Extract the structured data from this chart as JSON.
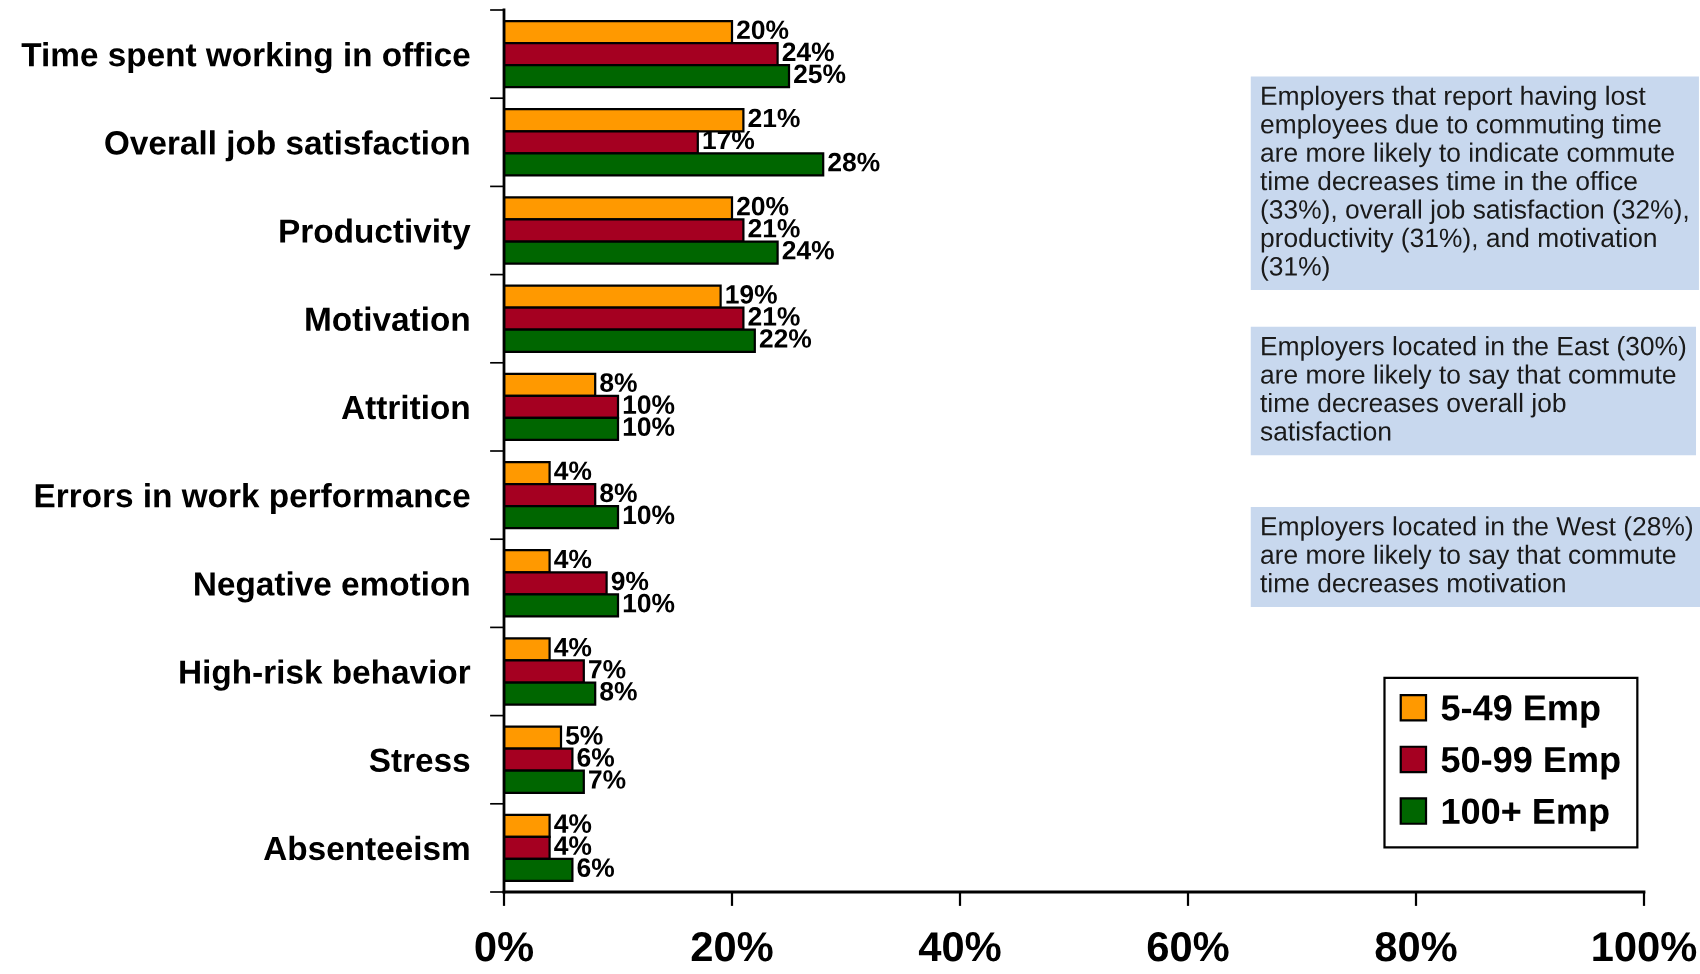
{
  "chart_data": {
    "type": "bar",
    "orientation": "horizontal",
    "categories": [
      "Time spent working in office",
      "Overall job satisfaction",
      "Productivity",
      "Motivation",
      "Attrition",
      "Errors in work performance",
      "Negative emotion",
      "High-risk behavior",
      "Stress",
      "Absenteeism"
    ],
    "series": [
      {
        "name": "5-49 Emp",
        "color": "#ff9900",
        "values": [
          20,
          21,
          20,
          19,
          8,
          4,
          4,
          4,
          5,
          4
        ],
        "value_labels": [
          "20%",
          "21%",
          "20%",
          "19%",
          "8%",
          "4%",
          "4%",
          "4%",
          "5%",
          "4%"
        ]
      },
      {
        "name": "50-99 Emp",
        "color": "#a50021",
        "values": [
          24,
          17,
          21,
          21,
          10,
          8,
          9,
          7,
          6,
          4
        ],
        "value_labels": [
          "24%",
          "17%",
          "21%",
          "21%",
          "10%",
          "8%",
          "9%",
          "7%",
          "6%",
          "4%"
        ]
      },
      {
        "name": "100+ Emp",
        "color": "#006600",
        "values": [
          25,
          28,
          24,
          22,
          10,
          10,
          10,
          8,
          7,
          6
        ],
        "value_labels": [
          "25%",
          "28%",
          "24%",
          "22%",
          "10%",
          "10%",
          "10%",
          "8%",
          "7%",
          "6%"
        ]
      }
    ],
    "xlim": [
      0,
      100
    ],
    "xticks": [
      {
        "value": 0,
        "label": "0%"
      },
      {
        "value": 20,
        "label": "20%"
      },
      {
        "value": 40,
        "label": "40%"
      },
      {
        "value": 60,
        "label": "60%"
      },
      {
        "value": 80,
        "label": "80%"
      },
      {
        "value": 100,
        "label": "100%"
      }
    ],
    "legend": "bottom right",
    "grid": false,
    "annotations": [
      "Employers that report having lost employees due to commuting time are more likely to indicate commute time decreases time in the office (33%), overall job satisfaction (32%), productivity (31%), and motivation (31%)",
      "Employers located in the East (30%) are more likely to say that commute time decreases overall job satisfaction",
      "Employers located in the West (28%) are more likely to say that commute time decreases motivation"
    ]
  }
}
